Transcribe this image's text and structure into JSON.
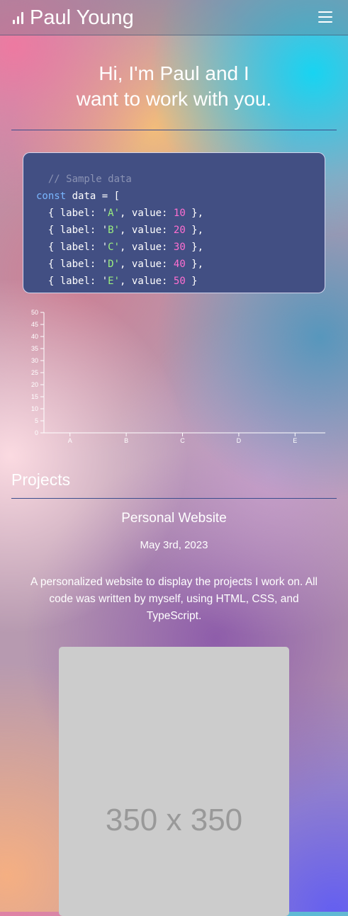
{
  "navbar": {
    "brand_title": "Paul Young",
    "brand_icon": "signal-bars-icon",
    "menu_icon": "hamburger-menu-icon"
  },
  "hero": {
    "line1": "Hi, I'm Paul and I",
    "line2": "want to work with you."
  },
  "code_sample": {
    "comment": "// Sample data",
    "keyword": "const",
    "declaration": " data = [",
    "rows": [
      {
        "label": "A",
        "value": "10"
      },
      {
        "label": "B",
        "value": "20"
      },
      {
        "label": "C",
        "value": "30"
      },
      {
        "label": "D",
        "value": "40"
      },
      {
        "label": "E",
        "value": "50"
      }
    ]
  },
  "chart_data": {
    "type": "bar",
    "categories": [
      "A",
      "B",
      "C",
      "D",
      "E"
    ],
    "values": [
      null,
      null,
      null,
      null,
      null
    ],
    "ylim": [
      0,
      50
    ],
    "yticks": [
      0,
      5,
      10,
      15,
      20,
      25,
      30,
      35,
      40,
      45,
      50
    ],
    "title": "",
    "xlabel": "",
    "ylabel": ""
  },
  "projects": {
    "section_title": "Projects",
    "items": [
      {
        "title": "Personal Website",
        "date": "May 3rd, 2023",
        "description": "A personalized website to display the projects I work on. All code was written by myself, using HTML, CSS, and TypeScript.",
        "image_placeholder": "350 x 350"
      }
    ]
  },
  "colors": {
    "code_background": "#424f83",
    "code_keyword": "#7ab7ff",
    "code_string": "#9bf07f",
    "code_number": "#ff6fd1",
    "code_comment": "#8a92b3",
    "divider": "#3b4d8c",
    "placeholder_background": "#cccccc",
    "placeholder_text": "#999999"
  }
}
